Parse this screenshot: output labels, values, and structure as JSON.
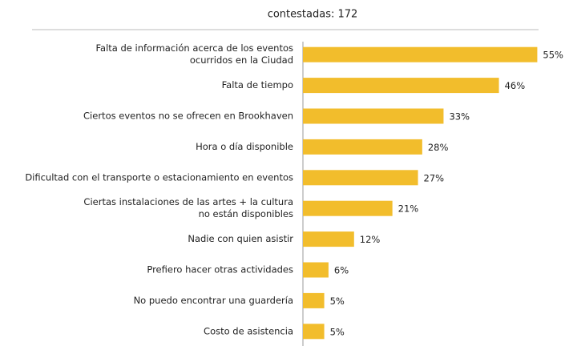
{
  "chart_data": {
    "type": "barh",
    "title": "contestadas: 172",
    "categories": [
      [
        "Falta de información acerca de los eventos",
        "ocurridos en la Ciudad"
      ],
      [
        "Falta de tiempo"
      ],
      [
        "Ciertos eventos no se ofrecen en Brookhaven"
      ],
      [
        "Hora o día disponible"
      ],
      [
        "Dificultad con el transporte o estacionamiento en eventos"
      ],
      [
        "Ciertas instalaciones de las artes + la cultura",
        "no están disponibles"
      ],
      [
        "Nadie con quien asistir"
      ],
      [
        "Prefiero hacer otras actividades"
      ],
      [
        "No puedo encontrar una guardería"
      ],
      [
        "Costo de asistencia"
      ]
    ],
    "values": [
      55,
      46,
      33,
      28,
      27,
      21,
      12,
      6,
      5,
      5
    ],
    "value_labels": [
      "55%",
      "46%",
      "33%",
      "28%",
      "27%",
      "21%",
      "12%",
      "6%",
      "5%",
      "5%"
    ],
    "color": "#f2bd2c",
    "xlim": [
      0,
      60
    ]
  }
}
